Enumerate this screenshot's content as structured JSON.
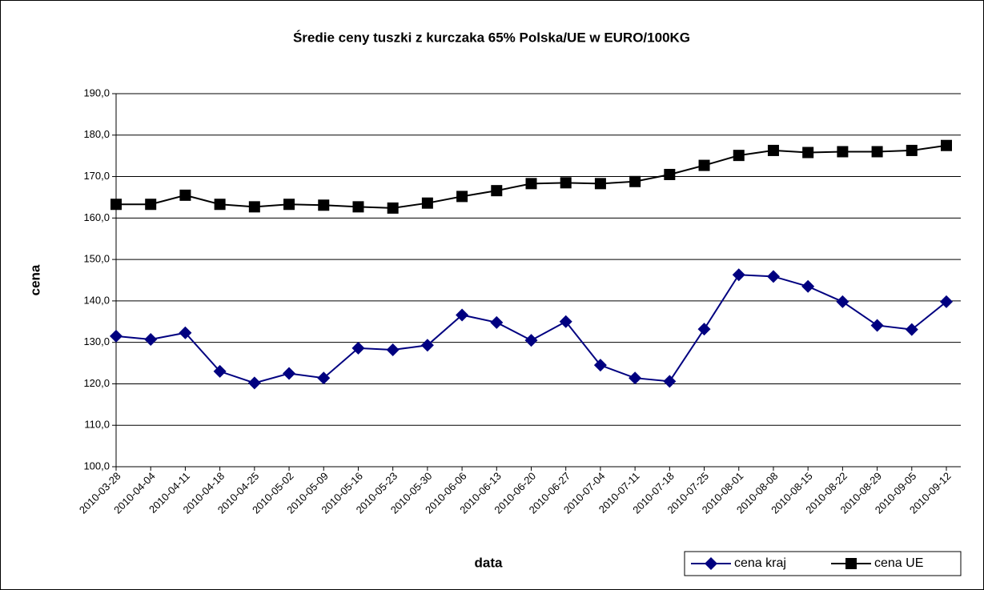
{
  "chart_data": {
    "type": "line",
    "title": "Średie ceny tuszki z kurczaka 65% Polska/UE w EURO/100KG",
    "x_label": "data",
    "y_label": "cena",
    "categories": [
      "2010-03-28",
      "2010-04-04",
      "2010-04-11",
      "2010-04-18",
      "2010-04-25",
      "2010-05-02",
      "2010-05-09",
      "2010-05-16",
      "2010-05-23",
      "2010-05-30",
      "2010-06-06",
      "2010-06-13",
      "2010-06-20",
      "2010-06-27",
      "2010-07-04",
      "2010-07-11",
      "2010-07-18",
      "2010-07-25",
      "2010-08-01",
      "2010-08-08",
      "2010-08-15",
      "2010-08-22",
      "2010-08-29",
      "2010-09-05",
      "2010-09-12"
    ],
    "series": [
      {
        "name": "cena kraj",
        "color": "#000080",
        "marker": "diamond",
        "values": [
          131.5,
          130.7,
          132.3,
          123.0,
          120.2,
          122.5,
          121.4,
          128.6,
          128.2,
          129.3,
          136.6,
          134.8,
          130.5,
          135.0,
          124.5,
          121.4,
          120.6,
          133.2,
          146.3,
          145.9,
          143.5,
          139.8,
          134.1,
          133.1,
          139.8
        ]
      },
      {
        "name": "cena UE",
        "color": "#000000",
        "marker": "square",
        "values": [
          163.3,
          163.3,
          165.5,
          163.3,
          162.7,
          163.3,
          163.1,
          162.7,
          162.4,
          163.6,
          165.2,
          166.6,
          168.3,
          168.5,
          168.3,
          168.8,
          170.5,
          172.7,
          175.1,
          176.3,
          175.8,
          176.0,
          176.0,
          176.3,
          177.5
        ]
      }
    ],
    "ylim": [
      100,
      190
    ],
    "yticks": [
      {
        "value": 100,
        "label": "100,0"
      },
      {
        "value": 110,
        "label": "110,0"
      },
      {
        "value": 120,
        "label": "120,0"
      },
      {
        "value": 130,
        "label": "130,0"
      },
      {
        "value": 140,
        "label": "140,0"
      },
      {
        "value": 150,
        "label": "150,0"
      },
      {
        "value": 160,
        "label": "160,0"
      },
      {
        "value": 170,
        "label": "170,0"
      },
      {
        "value": 180,
        "label": "180,0"
      },
      {
        "value": 190,
        "label": "190,0"
      }
    ],
    "grid": true,
    "legend": "bottom-right"
  }
}
